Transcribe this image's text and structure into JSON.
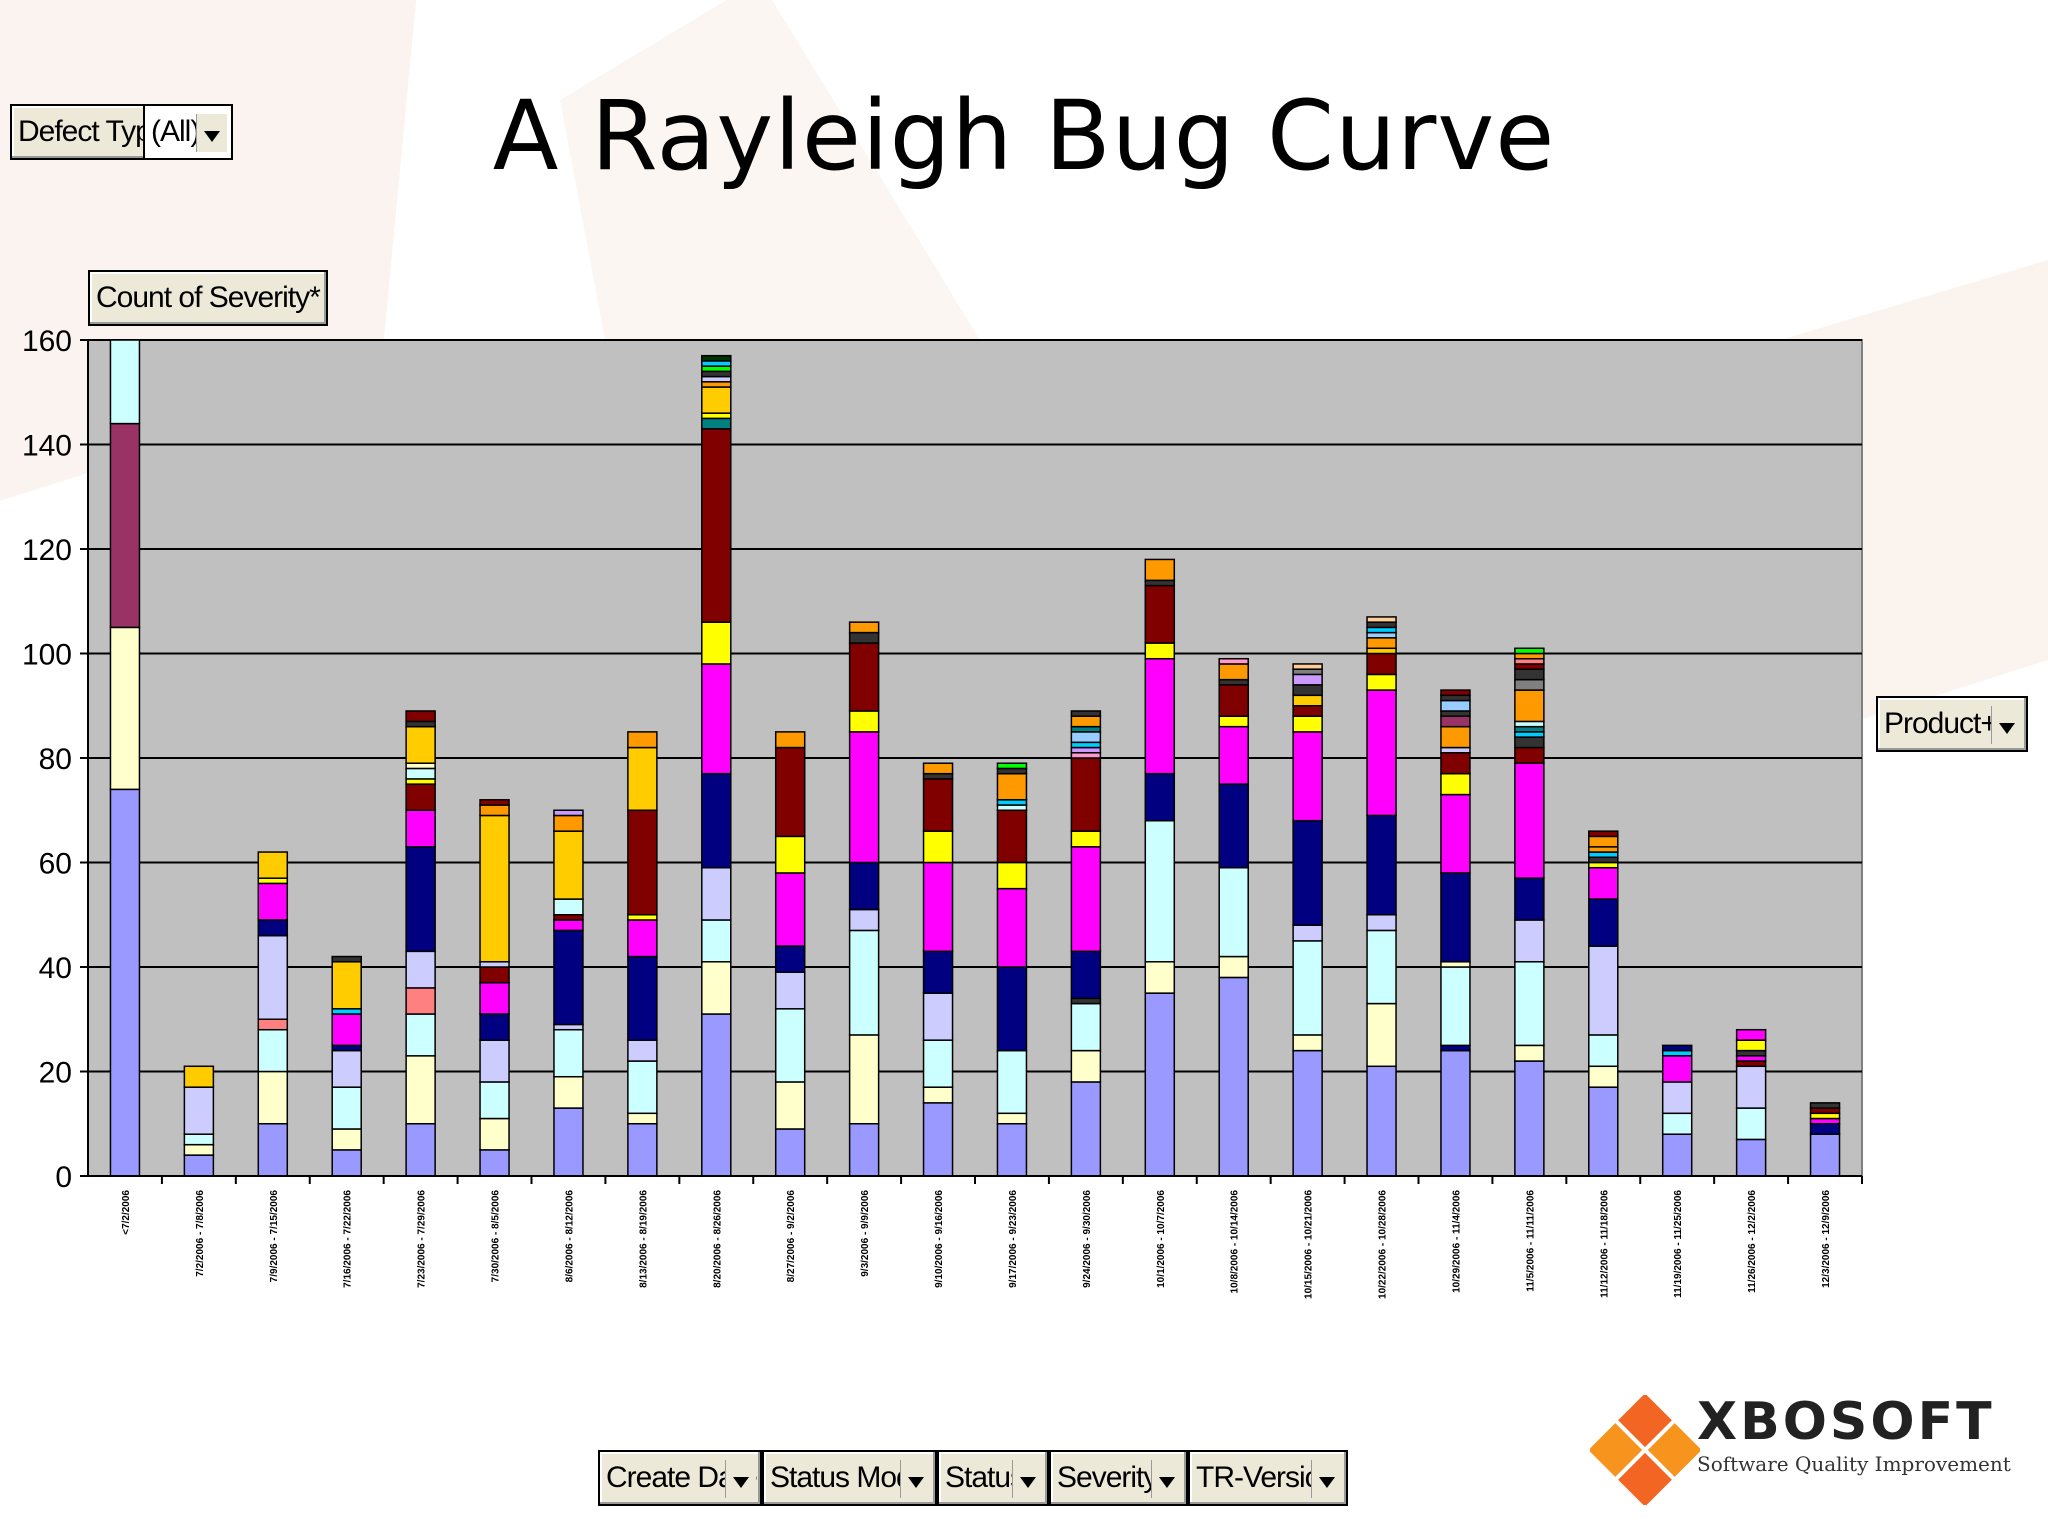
{
  "title": "A Rayleigh Bug Curve",
  "filter": {
    "label": "Defect Type",
    "value": "(All)"
  },
  "data_field": "Count of Severity*",
  "series_field": "Product+*",
  "category_fields": [
    "Create Date",
    "Status Mode",
    "Status",
    "Severity*",
    "TR-Version"
  ],
  "logo": {
    "name": "XBOSOFT",
    "tagline": "Software Quality Improvement"
  },
  "colors": {
    "plot_bg": "#c0c0c0",
    "logo_orange": "#f26522",
    "palette": [
      "#9999ff",
      "#ffffcc",
      "#ccffff",
      "#ccccff",
      "#ff8080",
      "#000080",
      "#ff00ff",
      "#ffff00",
      "#800000",
      "#ffcc00",
      "#ff9900",
      "#008080",
      "#993366",
      "#00ccff",
      "#99ccff",
      "#ff99cc",
      "#333333",
      "#808080",
      "#00ff00",
      "#cc99ff",
      "#003300",
      "#ffcc99"
    ]
  },
  "chart_data": {
    "type": "bar",
    "stacked": true,
    "ylim": [
      0,
      160
    ],
    "yticks": [
      0,
      20,
      40,
      60,
      80,
      100,
      120,
      140,
      160
    ],
    "grid": true,
    "categories": [
      "<7/2/2006",
      "7/2/2006 - 7/8/2006",
      "7/9/2006 - 7/15/2006",
      "7/16/2006 - 7/22/2006",
      "7/23/2006 - 7/29/2006",
      "7/30/2006 - 8/5/2006",
      "8/6/2006 - 8/12/2006",
      "8/13/2006 - 8/19/2006",
      "8/20/2006 - 8/26/2006",
      "8/27/2006 - 9/2/2006",
      "9/3/2006 - 9/9/2006",
      "9/10/2006 - 9/16/2006",
      "9/17/2006 - 9/23/2006",
      "9/24/2006 - 9/30/2006",
      "10/1/2006 - 10/7/2006",
      "10/8/2006 - 10/14/2006",
      "10/15/2006 - 10/21/2006",
      "10/22/2006 - 10/28/2006",
      "10/29/2006 - 11/4/2006",
      "11/5/2006 - 11/11/2006",
      "11/12/2006 - 11/18/2006",
      "11/19/2006 - 11/25/2006",
      "11/26/2006 - 12/2/2006",
      "12/3/2006 - 12/9/2006"
    ],
    "stacks": [
      [
        [
          74,
          0
        ],
        [
          31,
          1
        ],
        [
          39,
          12
        ],
        [
          16,
          2
        ]
      ],
      [
        [
          4,
          0
        ],
        [
          2,
          1
        ],
        [
          2,
          2
        ],
        [
          9,
          3
        ],
        [
          4,
          9
        ]
      ],
      [
        [
          10,
          0
        ],
        [
          10,
          1
        ],
        [
          8,
          2
        ],
        [
          2,
          4
        ],
        [
          16,
          3
        ],
        [
          3,
          5
        ],
        [
          7,
          6
        ],
        [
          1,
          7
        ],
        [
          5,
          9
        ]
      ],
      [
        [
          5,
          0
        ],
        [
          4,
          1
        ],
        [
          8,
          2
        ],
        [
          7,
          3
        ],
        [
          1,
          5
        ],
        [
          6,
          6
        ],
        [
          1,
          13
        ],
        [
          9,
          9
        ],
        [
          1,
          16
        ]
      ],
      [
        [
          10,
          0
        ],
        [
          13,
          1
        ],
        [
          8,
          2
        ],
        [
          5,
          4
        ],
        [
          7,
          3
        ],
        [
          20,
          5
        ],
        [
          7,
          6
        ],
        [
          5,
          8
        ],
        [
          1,
          7
        ],
        [
          2,
          2
        ],
        [
          1,
          1
        ],
        [
          7,
          9
        ],
        [
          1,
          16
        ],
        [
          2,
          8
        ]
      ],
      [
        [
          5,
          0
        ],
        [
          6,
          1
        ],
        [
          7,
          2
        ],
        [
          8,
          3
        ],
        [
          5,
          5
        ],
        [
          6,
          6
        ],
        [
          3,
          8
        ],
        [
          1,
          3
        ],
        [
          28,
          9
        ],
        [
          2,
          10
        ],
        [
          1,
          8
        ]
      ],
      [
        [
          13,
          0
        ],
        [
          6,
          1
        ],
        [
          9,
          2
        ],
        [
          1,
          3
        ],
        [
          18,
          5
        ],
        [
          2,
          6
        ],
        [
          1,
          8
        ],
        [
          3,
          2
        ],
        [
          13,
          9
        ],
        [
          3,
          10
        ],
        [
          1,
          19
        ]
      ],
      [
        [
          10,
          0
        ],
        [
          2,
          1
        ],
        [
          10,
          2
        ],
        [
          4,
          3
        ],
        [
          16,
          5
        ],
        [
          7,
          6
        ],
        [
          1,
          7
        ],
        [
          20,
          8
        ],
        [
          12,
          9
        ],
        [
          3,
          10
        ]
      ],
      [
        [
          31,
          0
        ],
        [
          10,
          1
        ],
        [
          8,
          2
        ],
        [
          10,
          3
        ],
        [
          18,
          5
        ],
        [
          21,
          6
        ],
        [
          8,
          7
        ],
        [
          37,
          8
        ],
        [
          2,
          11
        ],
        [
          1,
          7
        ],
        [
          5,
          9
        ],
        [
          1,
          10
        ],
        [
          1,
          3
        ],
        [
          1,
          16
        ],
        [
          1,
          18
        ],
        [
          1,
          13
        ],
        [
          1,
          20
        ]
      ],
      [
        [
          9,
          0
        ],
        [
          9,
          1
        ],
        [
          14,
          2
        ],
        [
          7,
          3
        ],
        [
          5,
          5
        ],
        [
          14,
          6
        ],
        [
          7,
          7
        ],
        [
          17,
          8
        ],
        [
          3,
          10
        ]
      ],
      [
        [
          10,
          0
        ],
        [
          17,
          1
        ],
        [
          20,
          2
        ],
        [
          4,
          3
        ],
        [
          9,
          5
        ],
        [
          25,
          6
        ],
        [
          4,
          7
        ],
        [
          13,
          8
        ],
        [
          2,
          16
        ],
        [
          2,
          10
        ]
      ],
      [
        [
          14,
          0
        ],
        [
          3,
          1
        ],
        [
          9,
          2
        ],
        [
          9,
          3
        ],
        [
          8,
          5
        ],
        [
          17,
          6
        ],
        [
          6,
          7
        ],
        [
          10,
          8
        ],
        [
          1,
          16
        ],
        [
          2,
          10
        ]
      ],
      [
        [
          10,
          0
        ],
        [
          2,
          1
        ],
        [
          12,
          2
        ],
        [
          16,
          5
        ],
        [
          15,
          6
        ],
        [
          5,
          7
        ],
        [
          10,
          8
        ],
        [
          1,
          2
        ],
        [
          1,
          13
        ],
        [
          5,
          10
        ],
        [
          1,
          16
        ],
        [
          1,
          18
        ]
      ],
      [
        [
          18,
          0
        ],
        [
          6,
          1
        ],
        [
          9,
          2
        ],
        [
          1,
          16
        ],
        [
          9,
          5
        ],
        [
          20,
          6
        ],
        [
          3,
          7
        ],
        [
          14,
          8
        ],
        [
          1,
          15
        ],
        [
          1,
          19
        ],
        [
          1,
          13
        ],
        [
          2,
          14
        ],
        [
          1,
          11
        ],
        [
          2,
          10
        ],
        [
          1,
          16
        ]
      ],
      [
        [
          35,
          0
        ],
        [
          6,
          1
        ],
        [
          27,
          2
        ],
        [
          9,
          5
        ],
        [
          22,
          6
        ],
        [
          3,
          7
        ],
        [
          11,
          8
        ],
        [
          1,
          16
        ],
        [
          4,
          10
        ]
      ],
      [
        [
          38,
          0
        ],
        [
          4,
          1
        ],
        [
          17,
          2
        ],
        [
          16,
          5
        ],
        [
          11,
          6
        ],
        [
          2,
          7
        ],
        [
          6,
          8
        ],
        [
          1,
          16
        ],
        [
          3,
          10
        ],
        [
          1,
          15
        ]
      ],
      [
        [
          24,
          0
        ],
        [
          3,
          1
        ],
        [
          18,
          2
        ],
        [
          3,
          3
        ],
        [
          20,
          5
        ],
        [
          17,
          6
        ],
        [
          3,
          7
        ],
        [
          2,
          8
        ],
        [
          2,
          9
        ],
        [
          2,
          16
        ],
        [
          2,
          19
        ],
        [
          1,
          17
        ],
        [
          1,
          21
        ]
      ],
      [
        [
          21,
          0
        ],
        [
          12,
          1
        ],
        [
          14,
          2
        ],
        [
          3,
          3
        ],
        [
          19,
          5
        ],
        [
          24,
          6
        ],
        [
          3,
          7
        ],
        [
          4,
          8
        ],
        [
          1,
          9
        ],
        [
          2,
          10
        ],
        [
          1,
          14
        ],
        [
          1,
          13
        ],
        [
          1,
          16
        ],
        [
          1,
          21
        ]
      ],
      [
        [
          24,
          0
        ],
        [
          1,
          5
        ],
        [
          15,
          2
        ],
        [
          1,
          1
        ],
        [
          17,
          5
        ],
        [
          15,
          6
        ],
        [
          4,
          7
        ],
        [
          4,
          8
        ],
        [
          1,
          3
        ],
        [
          4,
          10
        ],
        [
          2,
          12
        ],
        [
          1,
          16
        ],
        [
          2,
          14
        ],
        [
          1,
          16
        ],
        [
          1,
          8
        ]
      ],
      [
        [
          22,
          0
        ],
        [
          3,
          1
        ],
        [
          16,
          2
        ],
        [
          8,
          3
        ],
        [
          8,
          5
        ],
        [
          22,
          6
        ],
        [
          3,
          8
        ],
        [
          2,
          16
        ],
        [
          1,
          13
        ],
        [
          1,
          11
        ],
        [
          1,
          2
        ],
        [
          6,
          10
        ],
        [
          2,
          17
        ],
        [
          2,
          16
        ],
        [
          1,
          8
        ],
        [
          1,
          4
        ],
        [
          1,
          10
        ],
        [
          1,
          18
        ]
      ],
      [
        [
          17,
          0
        ],
        [
          4,
          1
        ],
        [
          6,
          2
        ],
        [
          17,
          3
        ],
        [
          9,
          5
        ],
        [
          6,
          6
        ],
        [
          1,
          7
        ],
        [
          1,
          16
        ],
        [
          1,
          13
        ],
        [
          1,
          10
        ],
        [
          2,
          10
        ],
        [
          1,
          8
        ]
      ],
      [
        [
          8,
          0
        ],
        [
          4,
          2
        ],
        [
          6,
          3
        ],
        [
          5,
          6
        ],
        [
          1,
          13
        ],
        [
          1,
          5
        ]
      ],
      [
        [
          7,
          0
        ],
        [
          6,
          2
        ],
        [
          8,
          3
        ],
        [
          1,
          8
        ],
        [
          1,
          6
        ],
        [
          1,
          16
        ],
        [
          2,
          7
        ],
        [
          2,
          6
        ]
      ],
      [
        [
          8,
          0
        ],
        [
          2,
          5
        ],
        [
          1,
          6
        ],
        [
          1,
          7
        ],
        [
          1,
          8
        ],
        [
          1,
          16
        ]
      ]
    ]
  }
}
